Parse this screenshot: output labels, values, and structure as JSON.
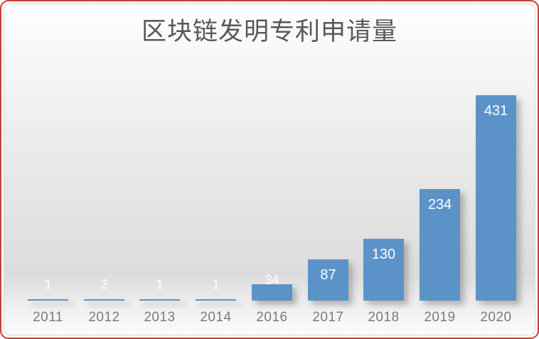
{
  "frame": {
    "border_color": "#c2403c",
    "backdrop_edge_color": "#d6d6d6"
  },
  "chart_data": {
    "type": "bar",
    "title": "区块链发明专利申请量",
    "categories": [
      "2011",
      "2012",
      "2013",
      "2014",
      "2016",
      "2017",
      "2018",
      "2019",
      "2020"
    ],
    "values": [
      1,
      2,
      1,
      1,
      34,
      87,
      130,
      234,
      431
    ],
    "xlabel": "",
    "ylabel": "",
    "ylim": [
      0,
      450
    ],
    "grid": false,
    "legend": false,
    "axis_line": false,
    "data_labels_position": "inside-end",
    "colors": {
      "bar": "#5b93c9",
      "data_label": "#ffffff",
      "tick_label": "#7b7b7b",
      "title": "#595959"
    }
  }
}
